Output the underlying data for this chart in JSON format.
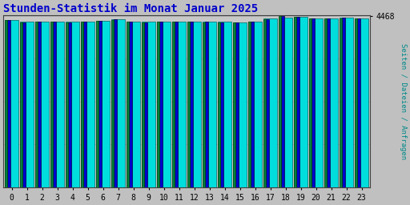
{
  "title": "Stunden-Statistik im Monat Januar 2025",
  "title_color": "#0000cc",
  "title_fontsize": 10,
  "ylabel": "Seiten / Dateien / Anfragen",
  "ylabel_color": "#008888",
  "ylabel_fontsize": 6.5,
  "background_color": "#c0c0c0",
  "plot_bg_color": "#c8c8c8",
  "hours": [
    0,
    1,
    2,
    3,
    4,
    5,
    6,
    7,
    8,
    9,
    10,
    11,
    12,
    13,
    14,
    15,
    16,
    17,
    18,
    19,
    20,
    21,
    22,
    23
  ],
  "values_cyan": [
    4370,
    4310,
    4315,
    4325,
    4310,
    4322,
    4345,
    4375,
    4320,
    4310,
    4316,
    4318,
    4316,
    4312,
    4310,
    4308,
    4322,
    4395,
    4430,
    4455,
    4405,
    4405,
    4420,
    4408
  ],
  "values_blue": [
    4368,
    4308,
    4313,
    4323,
    4308,
    4320,
    4343,
    4373,
    4318,
    4308,
    4314,
    4316,
    4314,
    4310,
    4308,
    4306,
    4320,
    4393,
    4462,
    4453,
    4400,
    4400,
    4415,
    4403
  ],
  "values_green": [
    4366,
    4306,
    4311,
    4321,
    4306,
    4318,
    4341,
    4371,
    4316,
    4306,
    4312,
    4314,
    4312,
    4308,
    4306,
    4304,
    4318,
    4391,
    4465,
    4450,
    4398,
    4398,
    4413,
    4401
  ],
  "color_cyan": "#00dddd",
  "color_blue": "#0000cc",
  "color_green": "#008040",
  "ytick_value": 4468,
  "ylim_max": 4480,
  "border_color": "#404040",
  "grid_color": "#b0b0b0",
  "grid_lines": [
    4468
  ]
}
